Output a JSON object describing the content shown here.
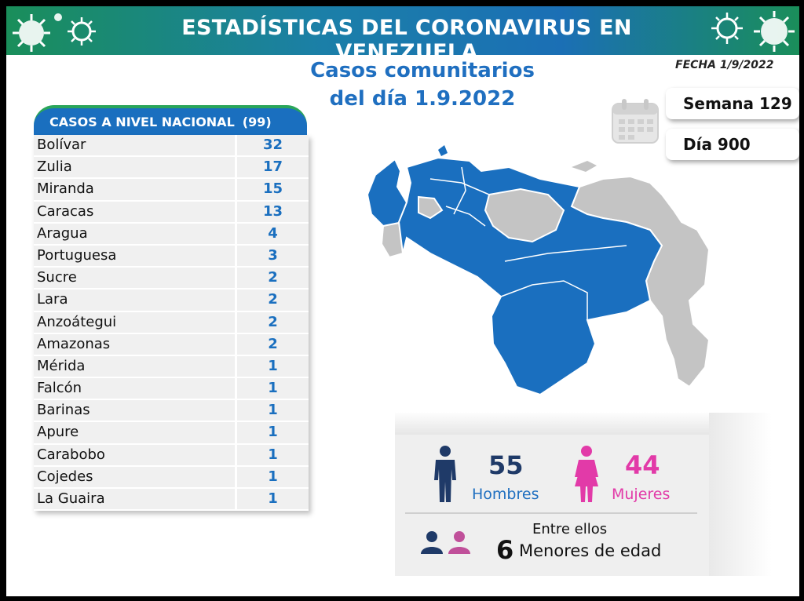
{
  "header": {
    "title": "ESTADÍSTICAS DEL CORONAVIRUS EN VENEZUELA",
    "subtitle_line1": "Casos comunitarios",
    "subtitle_line2": "del día 1.9.2022",
    "fecha": "FECHA 1/9/2022"
  },
  "counters": {
    "semana": "Semana 129",
    "dia": "Día 900"
  },
  "table": {
    "title": "CASOS A NIVEL NACIONAL",
    "total": "(99)",
    "rows": [
      {
        "state": "Bolívar",
        "cases": "32"
      },
      {
        "state": "Zulia",
        "cases": "17"
      },
      {
        "state": "Miranda",
        "cases": "15"
      },
      {
        "state": "Caracas",
        "cases": "13"
      },
      {
        "state": "Aragua",
        "cases": "4"
      },
      {
        "state": "Portuguesa",
        "cases": "3"
      },
      {
        "state": "Sucre",
        "cases": "2"
      },
      {
        "state": "Lara",
        "cases": "2"
      },
      {
        "state": "Anzoátegui",
        "cases": "2"
      },
      {
        "state": "Amazonas",
        "cases": "2"
      },
      {
        "state": "Mérida",
        "cases": "1"
      },
      {
        "state": "Falcón",
        "cases": "1"
      },
      {
        "state": "Barinas",
        "cases": "1"
      },
      {
        "state": "Apure",
        "cases": "1"
      },
      {
        "state": "Carabobo",
        "cases": "1"
      },
      {
        "state": "Cojedes",
        "cases": "1"
      },
      {
        "state": "La Guaira",
        "cases": "1"
      }
    ]
  },
  "gender": {
    "men_count": "55",
    "men_label": "Hombres",
    "women_count": "44",
    "women_label": "Mujeres",
    "entre_ellos": "Entre ellos",
    "minors_count": "6",
    "minors_label": "Menores de edad"
  },
  "colors": {
    "brand_blue": "#1a6fbf",
    "brand_green": "#2aa55a",
    "men_navy": "#1f3a68",
    "women_magenta": "#e23aa8",
    "map_affected": "#1a6fbf",
    "map_unaffected": "#c4c4c4"
  },
  "icons": [
    "virus-icon",
    "calendar-icon",
    "man-icon",
    "woman-icon",
    "minors-icon"
  ]
}
